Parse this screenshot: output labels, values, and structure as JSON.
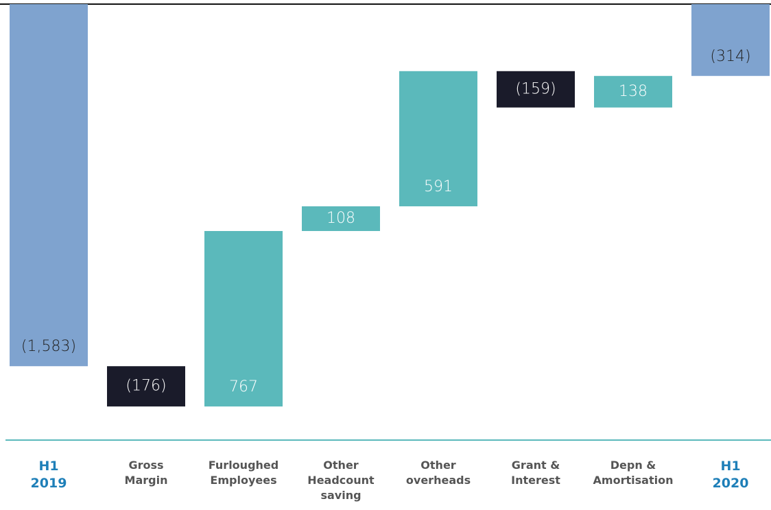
{
  "chart_data": {
    "type": "waterfall",
    "categories": [
      "H1\n2019",
      "Gross\nMargin",
      "Furloughed\nEmployees",
      "Other\nHeadcount\nsaving",
      "Other\noverheads",
      "Grant &\nInterest",
      "Depn &\nAmortisation",
      "H1\n2020"
    ],
    "values": [
      -1583,
      -176,
      767,
      108,
      591,
      -159,
      138,
      -314
    ],
    "value_labels": [
      "(1,583)",
      "(176)",
      "767",
      "108",
      "591",
      "(159)",
      "138",
      "(314)"
    ],
    "is_total": [
      true,
      false,
      false,
      false,
      false,
      false,
      false,
      true
    ],
    "colors": {
      "total": "#7fa3cf",
      "increase": "#5bb9bb",
      "decrease": "#1a1b2a"
    },
    "ylim": [
      -1900,
      0
    ]
  }
}
